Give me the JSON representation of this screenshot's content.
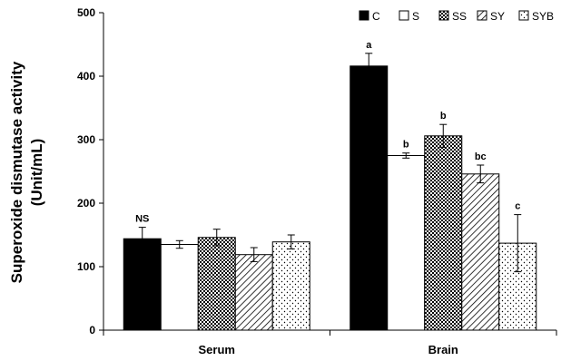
{
  "chart_data": {
    "type": "bar",
    "ylabel_line1": "Superoxide dismutase activity",
    "ylabel_line2": "(Unit/mL)",
    "ylim": [
      0,
      500
    ],
    "yticks": [
      "0",
      "100",
      "200",
      "300",
      "400",
      "500"
    ],
    "categories": [
      "Serum",
      "Brain"
    ],
    "legend_position": "top-right",
    "series": [
      {
        "name": "C",
        "pattern": "solid",
        "values": [
          144,
          416
        ],
        "errors": [
          18,
          20
        ]
      },
      {
        "name": "S",
        "pattern": "white",
        "values": [
          135,
          275
        ],
        "errors": [
          6,
          4
        ]
      },
      {
        "name": "SS",
        "pattern": "checker",
        "values": [
          146,
          306
        ],
        "errors": [
          13,
          18
        ]
      },
      {
        "name": "SY",
        "pattern": "diagonal",
        "values": [
          119,
          246
        ],
        "errors": [
          11,
          14
        ]
      },
      {
        "name": "SYB",
        "pattern": "dots",
        "values": [
          139,
          137
        ],
        "errors": [
          11,
          45
        ]
      }
    ],
    "annotations": [
      {
        "group": 0,
        "series": 0,
        "text": "NS"
      },
      {
        "group": 1,
        "series": 0,
        "text": "a"
      },
      {
        "group": 1,
        "series": 1,
        "text": "b"
      },
      {
        "group": 1,
        "series": 2,
        "text": "b"
      },
      {
        "group": 1,
        "series": 3,
        "text": "bc"
      },
      {
        "group": 1,
        "series": 4,
        "text": "c"
      }
    ]
  }
}
